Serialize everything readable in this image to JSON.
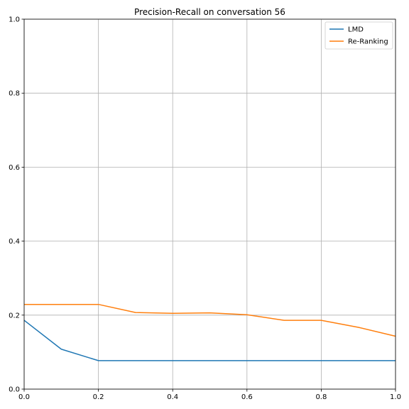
{
  "chart_data": {
    "type": "line",
    "title": "Precision-Recall on conversation 56",
    "xlabel": "",
    "ylabel": "",
    "xlim": [
      0,
      1
    ],
    "ylim": [
      0,
      1
    ],
    "x_ticks": [
      "0.0",
      "0.2",
      "0.4",
      "0.6",
      "0.8",
      "1.0"
    ],
    "y_ticks": [
      "0.0",
      "0.2",
      "0.4",
      "0.6",
      "0.8",
      "1.0"
    ],
    "grid": true,
    "legend_position": "top-right",
    "x": [
      0.0,
      0.1,
      0.2,
      0.3,
      0.4,
      0.5,
      0.6,
      0.7,
      0.8,
      0.9,
      1.0
    ],
    "series": [
      {
        "name": "LMD",
        "color": "#1f77b4",
        "values": [
          0.186,
          0.108,
          0.077,
          0.077,
          0.077,
          0.077,
          0.077,
          0.077,
          0.077,
          0.077,
          0.077
        ]
      },
      {
        "name": "Re-Ranking",
        "color": "#ff7f0e",
        "values": [
          0.229,
          0.229,
          0.229,
          0.207,
          0.205,
          0.206,
          0.201,
          0.186,
          0.186,
          0.167,
          0.143
        ]
      }
    ]
  }
}
